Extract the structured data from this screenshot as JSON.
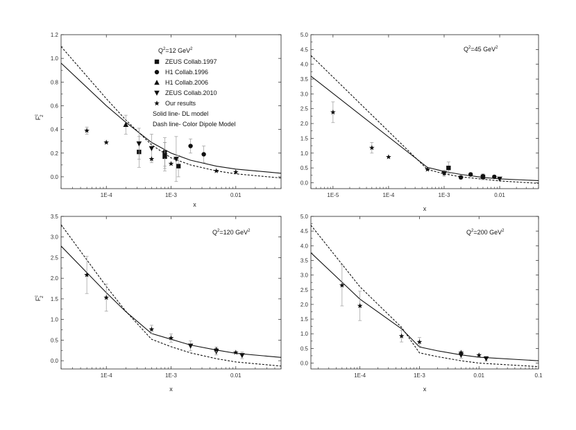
{
  "chart_data": [
    {
      "type": "line",
      "panel": "top-left",
      "annotation_main": "Q",
      "annotation_sup": "2",
      "annotation_rest": "=12 GeV",
      "annotation_sup2": "2",
      "xlabel": "x",
      "ylabel_main": "F",
      "ylabel_sup": "c",
      "ylabel_sub": "2",
      "x_scale": "log",
      "xlim": [
        2e-05,
        0.05
      ],
      "ylim": [
        -0.1,
        1.2
      ],
      "x_ticks": [
        0.0001,
        0.001,
        0.01
      ],
      "x_tick_labels": [
        "1E-4",
        "1E-3",
        "0.01"
      ],
      "y_ticks": [
        0.0,
        0.2,
        0.4,
        0.6,
        0.8,
        1.0,
        1.2
      ],
      "y_tick_labels": [
        "0.0",
        "0.2",
        "0.4",
        "0.6",
        "0.8",
        "1.0",
        "1.2"
      ],
      "legend_items": [
        {
          "marker": "square",
          "label": "ZEUS Collab.1997"
        },
        {
          "marker": "circle",
          "label": "H1 Collab.1996"
        },
        {
          "marker": "triangle-up",
          "label": "H1 Collab.2006"
        },
        {
          "marker": "triangle-down",
          "label": "ZEUS Collab.2010"
        },
        {
          "marker": "star",
          "label": "Our results"
        }
      ],
      "legend_notes": [
        "Solid line- DL model",
        "Dash line- Color Dipole Model"
      ],
      "series": [
        {
          "style": "solid",
          "x": [
            2e-05,
            0.0001,
            0.0002,
            0.0005,
            0.001,
            0.002,
            0.005,
            0.01,
            0.05
          ],
          "y": [
            0.96,
            0.6,
            0.46,
            0.29,
            0.2,
            0.14,
            0.09,
            0.065,
            0.03
          ]
        },
        {
          "style": "dashed",
          "x": [
            2e-05,
            0.0001,
            0.0002,
            0.0005,
            0.001,
            0.002,
            0.005,
            0.01,
            0.05
          ],
          "y": [
            1.1,
            0.66,
            0.48,
            0.27,
            0.16,
            0.1,
            0.05,
            0.025,
            -0.01
          ]
        }
      ],
      "points": [
        {
          "marker": "square",
          "data": [
            {
              "x": 0.00032,
              "y": 0.21,
              "err": 0.13
            },
            {
              "x": 0.0008,
              "y": 0.17,
              "err": 0.12
            },
            {
              "x": 0.0013,
              "y": 0.09,
              "err": 0.09
            }
          ]
        },
        {
          "marker": "circle",
          "data": [
            {
              "x": 0.0008,
              "y": 0.21,
              "err": 0.12
            },
            {
              "x": 0.002,
              "y": 0.26,
              "err": 0.06
            },
            {
              "x": 0.0032,
              "y": 0.19,
              "err": 0.07
            }
          ]
        },
        {
          "marker": "triangle-up",
          "data": [
            {
              "x": 0.0002,
              "y": 0.44,
              "err": 0.08
            }
          ]
        },
        {
          "marker": "triangle-down",
          "data": [
            {
              "x": 0.00032,
              "y": 0.28,
              "err": 0.13
            },
            {
              "x": 0.0005,
              "y": 0.24,
              "err": 0.12
            },
            {
              "x": 0.0008,
              "y": 0.18,
              "err": 0.11
            },
            {
              "x": 0.0012,
              "y": 0.15,
              "err": 0.19
            }
          ]
        },
        {
          "marker": "star",
          "data": [
            {
              "x": 5e-05,
              "y": 0.39,
              "err": 0.03
            },
            {
              "x": 0.0001,
              "y": 0.29,
              "err": 0
            },
            {
              "x": 0.0005,
              "y": 0.15,
              "err": 0
            },
            {
              "x": 0.001,
              "y": 0.11,
              "err": 0
            },
            {
              "x": 0.005,
              "y": 0.05,
              "err": 0
            },
            {
              "x": 0.01,
              "y": 0.04,
              "err": 0
            }
          ]
        }
      ]
    },
    {
      "type": "line",
      "panel": "top-right",
      "annotation_main": "Q",
      "annotation_sup": "2",
      "annotation_rest": "=45 GeV",
      "annotation_sup2": "2",
      "xlabel": "x",
      "ylabel_main": "",
      "ylabel_sup": "",
      "ylabel_sub": "",
      "x_scale": "log",
      "xlim": [
        4e-06,
        0.05
      ],
      "ylim": [
        -0.2,
        5.0
      ],
      "x_ticks": [
        1e-05,
        0.0001,
        0.001,
        0.01
      ],
      "x_tick_labels": [
        "1E-5",
        "1E-4",
        "1E-3",
        "0.01"
      ],
      "y_ticks": [
        0.0,
        0.5,
        1.0,
        1.5,
        2.0,
        2.5,
        3.0,
        3.5,
        4.0,
        4.5,
        5.0
      ],
      "y_tick_labels": [
        "0.0",
        "0.5",
        "1.0",
        "1.5",
        "2.0",
        "2.5",
        "3.0",
        "3.5",
        "4.0",
        "4.5",
        "5.0"
      ],
      "legend_items": [],
      "legend_notes": [],
      "series": [
        {
          "style": "solid",
          "x": [
            4e-06,
            0.0005,
            0.001,
            0.002,
            0.005,
            0.01,
            0.05
          ],
          "y": [
            3.6,
            0.52,
            0.38,
            0.28,
            0.18,
            0.13,
            0.07
          ]
        },
        {
          "style": "dashed",
          "x": [
            4e-06,
            0.0005,
            0.001,
            0.002,
            0.005,
            0.01,
            0.05
          ],
          "y": [
            4.3,
            0.45,
            0.3,
            0.2,
            0.12,
            0.06,
            -0.02
          ]
        }
      ],
      "points": [
        {
          "marker": "square",
          "data": [
            {
              "x": 0.0012,
              "y": 0.5,
              "err": 0.2
            },
            {
              "x": 0.005,
              "y": 0.2,
              "err": 0.1
            }
          ]
        },
        {
          "marker": "circle",
          "data": [
            {
              "x": 0.002,
              "y": 0.18,
              "err": 0.06
            },
            {
              "x": 0.003,
              "y": 0.28,
              "err": 0.06
            },
            {
              "x": 0.005,
              "y": 0.22,
              "err": 0.05
            },
            {
              "x": 0.008,
              "y": 0.2,
              "err": 0.05
            }
          ]
        },
        {
          "marker": "triangle-down",
          "data": [
            {
              "x": 0.001,
              "y": 0.32,
              "err": 0.1
            },
            {
              "x": 0.01,
              "y": 0.13,
              "err": 0.05
            }
          ]
        },
        {
          "marker": "star",
          "data": [
            {
              "x": 1e-05,
              "y": 2.38,
              "err": 0.35
            },
            {
              "x": 5e-05,
              "y": 1.18,
              "err": 0.18
            },
            {
              "x": 0.0001,
              "y": 0.87,
              "err": 0
            },
            {
              "x": 0.0005,
              "y": 0.45,
              "err": 0
            },
            {
              "x": 0.001,
              "y": 0.32,
              "err": 0
            }
          ]
        }
      ]
    },
    {
      "type": "line",
      "panel": "bottom-left",
      "annotation_main": "Q",
      "annotation_sup": "2",
      "annotation_rest": "=120 GeV",
      "annotation_sup2": "2",
      "xlabel": "x",
      "ylabel_main": "F",
      "ylabel_sup": "c",
      "ylabel_sub": "2",
      "x_scale": "log",
      "xlim": [
        2e-05,
        0.05
      ],
      "ylim": [
        -0.2,
        3.5
      ],
      "x_ticks": [
        0.0001,
        0.001,
        0.01
      ],
      "x_tick_labels": [
        "1E-4",
        "1E-3",
        "0.01"
      ],
      "y_ticks": [
        0.0,
        0.5,
        1.0,
        1.5,
        2.0,
        2.5,
        3.0,
        3.5
      ],
      "y_tick_labels": [
        "0.0",
        "0.5",
        "1.0",
        "1.5",
        "2.0",
        "2.5",
        "3.0",
        "3.5"
      ],
      "legend_items": [],
      "legend_notes": [],
      "series": [
        {
          "style": "solid",
          "x": [
            2e-05,
            0.0001,
            0.0002,
            0.0005,
            0.001,
            0.002,
            0.005,
            0.01,
            0.05
          ],
          "y": [
            2.78,
            1.65,
            1.19,
            0.66,
            0.52,
            0.38,
            0.26,
            0.18,
            0.08
          ]
        },
        {
          "style": "dashed",
          "x": [
            2e-05,
            0.0001,
            0.0002,
            0.0005,
            0.001,
            0.002,
            0.005,
            0.01,
            0.05
          ],
          "y": [
            3.3,
            1.8,
            1.2,
            0.52,
            0.34,
            0.19,
            0.05,
            -0.03,
            -0.13
          ]
        }
      ],
      "points": [
        {
          "marker": "triangle-down",
          "data": [
            {
              "x": 0.002,
              "y": 0.36,
              "err": 0.12
            },
            {
              "x": 0.005,
              "y": 0.22,
              "err": 0.08
            },
            {
              "x": 0.0125,
              "y": 0.13,
              "err": 0.08
            }
          ]
        },
        {
          "marker": "star",
          "data": [
            {
              "x": 5e-05,
              "y": 2.08,
              "err": 0.45
            },
            {
              "x": 0.0001,
              "y": 1.53,
              "err": 0.33
            },
            {
              "x": 0.0005,
              "y": 0.76,
              "err": 0.1
            },
            {
              "x": 0.001,
              "y": 0.55,
              "err": 0.1
            },
            {
              "x": 0.005,
              "y": 0.27,
              "err": 0.06
            },
            {
              "x": 0.01,
              "y": 0.2,
              "err": 0
            }
          ]
        }
      ]
    },
    {
      "type": "line",
      "panel": "bottom-right",
      "annotation_main": "Q",
      "annotation_sup": "2",
      "annotation_rest": "=200 GeV",
      "annotation_sup2": "2",
      "xlabel": "x",
      "ylabel_main": "",
      "ylabel_sup": "",
      "ylabel_sub": "",
      "x_scale": "log",
      "xlim": [
        1.5e-05,
        0.1
      ],
      "ylim": [
        -0.2,
        5.0
      ],
      "x_ticks": [
        0.0001,
        0.001,
        0.01,
        0.1
      ],
      "x_tick_labels": [
        "1E-4",
        "1E-3",
        "0.01",
        "0.1"
      ],
      "y_ticks": [
        0.0,
        0.5,
        1.0,
        1.5,
        2.0,
        2.5,
        3.0,
        3.5,
        4.0,
        4.5,
        5.0
      ],
      "y_tick_labels": [
        "0.0",
        "0.5",
        "1.0",
        "1.5",
        "2.0",
        "2.5",
        "3.0",
        "3.5",
        "4.0",
        "4.5",
        "5.0"
      ],
      "legend_items": [],
      "legend_notes": [],
      "series": [
        {
          "style": "solid",
          "x": [
            1.5e-05,
            0.0001,
            0.0005,
            0.001,
            0.002,
            0.005,
            0.01,
            0.1
          ],
          "y": [
            3.76,
            2.18,
            1.17,
            0.55,
            0.42,
            0.28,
            0.2,
            0.08
          ]
        },
        {
          "style": "dashed",
          "x": [
            1.5e-05,
            0.0001,
            0.0005,
            0.001,
            0.002,
            0.005,
            0.01,
            0.1
          ],
          "y": [
            4.7,
            2.6,
            1.22,
            0.35,
            0.22,
            0.08,
            0.0,
            -0.12
          ]
        }
      ],
      "points": [
        {
          "marker": "triangle-down",
          "data": [
            {
              "x": 0.005,
              "y": 0.27,
              "err": 0.1
            },
            {
              "x": 0.0132,
              "y": 0.15,
              "err": 0.08
            }
          ]
        },
        {
          "marker": "star",
          "data": [
            {
              "x": 5e-05,
              "y": 2.65,
              "err": 0.7
            },
            {
              "x": 0.0001,
              "y": 1.95,
              "err": 0.5
            },
            {
              "x": 0.0005,
              "y": 0.92,
              "err": 0.2
            },
            {
              "x": 0.001,
              "y": 0.72,
              "err": 0.15
            },
            {
              "x": 0.005,
              "y": 0.36,
              "err": 0
            },
            {
              "x": 0.01,
              "y": 0.27,
              "err": 0
            }
          ]
        }
      ]
    }
  ]
}
